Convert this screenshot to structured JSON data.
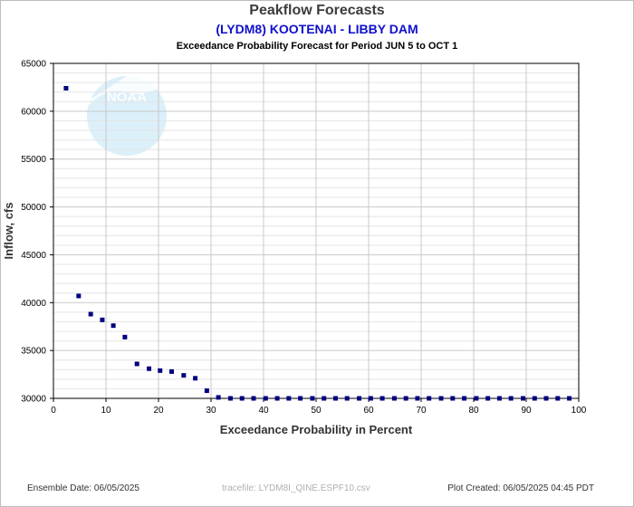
{
  "header": {
    "title": "Peakflow Forecasts",
    "station": "(LYDM8) KOOTENAI - LIBBY DAM",
    "subtitle": "Exceedance Probability Forecast for Period JUN 5 to OCT 1"
  },
  "footer": {
    "ensemble_date": "Ensemble Date: 06/05/2025",
    "tracefile": "tracefile: LYDM8I_QINE.ESPF10.csv",
    "plot_created": "Plot Created: 06/05/2025 04:45 PDT"
  },
  "colors": {
    "marker": "#000080",
    "grid_major": "#c8c8c8",
    "grid_minor": "#e4e4e4",
    "logo": "#bfe3f5"
  },
  "logo_text": "NOAA",
  "chart_data": {
    "type": "scatter",
    "xlabel": "Exceedance Probability in Percent",
    "ylabel": "Inflow, cfs",
    "xlim": [
      0,
      100
    ],
    "ylim": [
      30000,
      65000
    ],
    "xticks": [
      0,
      10,
      20,
      30,
      40,
      50,
      60,
      70,
      80,
      90,
      100
    ],
    "yticks": [
      30000,
      35000,
      40000,
      45000,
      50000,
      55000,
      60000,
      65000
    ],
    "grid": true,
    "points": [
      [
        2.4,
        62400
      ],
      [
        4.8,
        40700
      ],
      [
        7.1,
        38800
      ],
      [
        9.3,
        38200
      ],
      [
        11.4,
        37600
      ],
      [
        13.6,
        36400
      ],
      [
        15.9,
        33600
      ],
      [
        18.2,
        33100
      ],
      [
        20.3,
        32900
      ],
      [
        22.5,
        32800
      ],
      [
        24.8,
        32400
      ],
      [
        27.0,
        32100
      ],
      [
        29.2,
        30800
      ],
      [
        31.4,
        30100
      ],
      [
        33.7,
        30000
      ],
      [
        35.9,
        30000
      ],
      [
        38.1,
        30000
      ],
      [
        40.4,
        30000
      ],
      [
        42.6,
        30000
      ],
      [
        44.8,
        30000
      ],
      [
        47.0,
        30000
      ],
      [
        49.3,
        30000
      ],
      [
        51.5,
        30000
      ],
      [
        53.7,
        30000
      ],
      [
        55.9,
        30000
      ],
      [
        58.2,
        30000
      ],
      [
        60.4,
        30000
      ],
      [
        62.6,
        30000
      ],
      [
        64.9,
        30000
      ],
      [
        67.1,
        30000
      ],
      [
        69.3,
        30000
      ],
      [
        71.5,
        30000
      ],
      [
        73.8,
        30000
      ],
      [
        76.0,
        30000
      ],
      [
        78.2,
        30000
      ],
      [
        80.5,
        30000
      ],
      [
        82.7,
        30000
      ],
      [
        84.9,
        30000
      ],
      [
        87.1,
        30000
      ],
      [
        89.4,
        30000
      ],
      [
        91.6,
        30000
      ],
      [
        93.8,
        30000
      ],
      [
        96.0,
        30000
      ],
      [
        98.2,
        30000
      ]
    ]
  }
}
